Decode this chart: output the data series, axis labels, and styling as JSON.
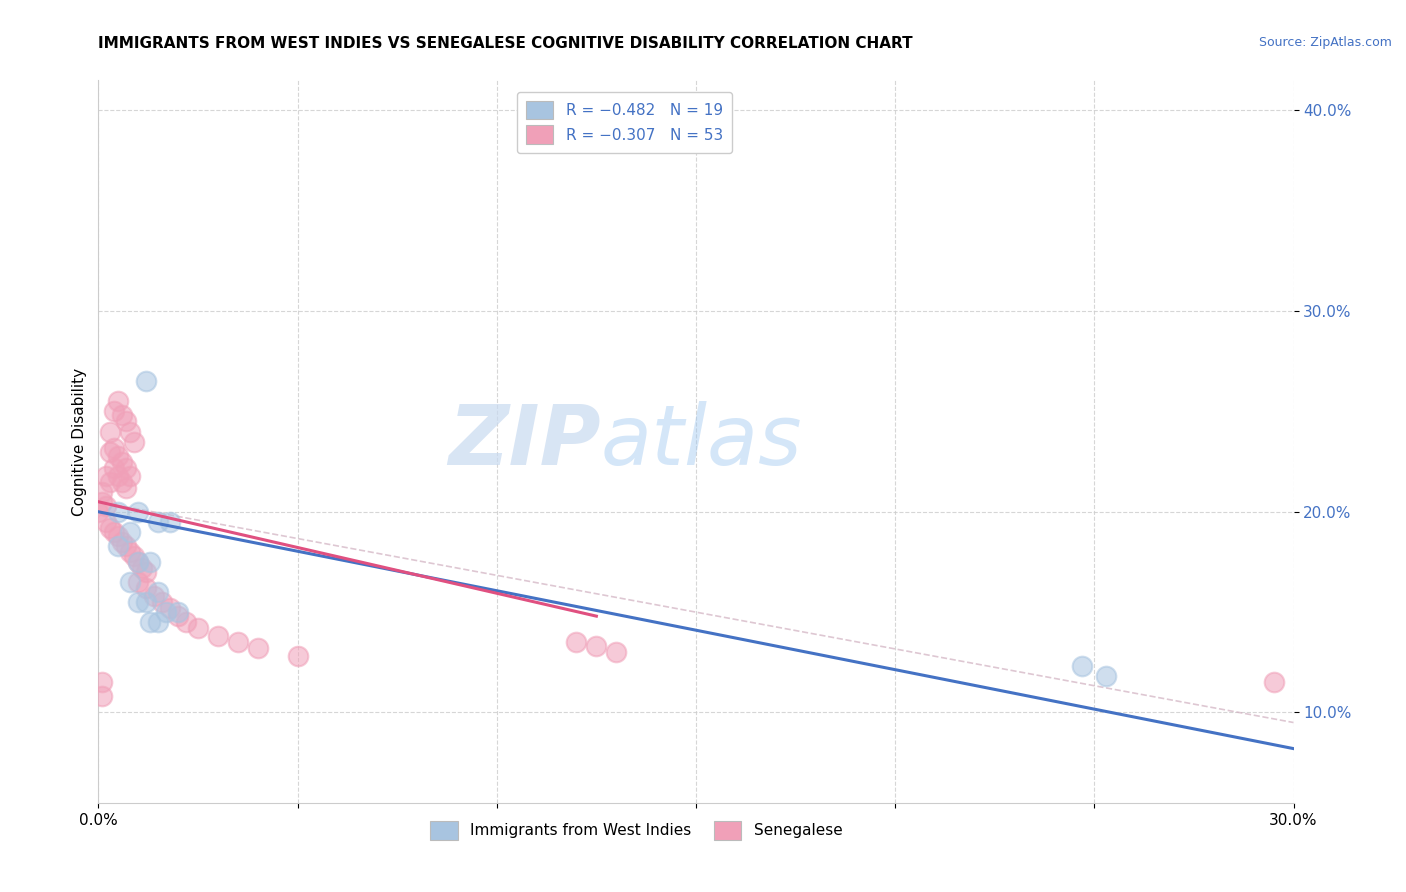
{
  "title": "IMMIGRANTS FROM WEST INDIES VS SENEGALESE COGNITIVE DISABILITY CORRELATION CHART",
  "source": "Source: ZipAtlas.com",
  "ylabel": "Cognitive Disability",
  "xlim": [
    0.0,
    0.3
  ],
  "ylim": [
    0.055,
    0.415
  ],
  "grid_color": "#cccccc",
  "background_color": "#ffffff",
  "watermark_zip": "ZIP",
  "watermark_atlas": "atlas",
  "legend_color": "#4472c4",
  "color_blue": "#a8c4e0",
  "color_pink": "#f0a0b8",
  "line_blue": "#4472c4",
  "line_pink": "#e05080",
  "line_dash_color": "#d0b0c0",
  "scatter_alpha": 0.55,
  "scatter_size": 200,
  "scatter_lw": 1.5,
  "blue_scatter_x": [
    0.005,
    0.01,
    0.012,
    0.008,
    0.015,
    0.018,
    0.005,
    0.01,
    0.013,
    0.008,
    0.015,
    0.012,
    0.01,
    0.013,
    0.015,
    0.017,
    0.02,
    0.247,
    0.253
  ],
  "blue_scatter_y": [
    0.2,
    0.2,
    0.265,
    0.19,
    0.195,
    0.195,
    0.183,
    0.175,
    0.175,
    0.165,
    0.16,
    0.155,
    0.155,
    0.145,
    0.145,
    0.15,
    0.15,
    0.123,
    0.118
  ],
  "pink_scatter_x": [
    0.001,
    0.002,
    0.003,
    0.004,
    0.005,
    0.006,
    0.007,
    0.008,
    0.003,
    0.004,
    0.005,
    0.006,
    0.007,
    0.008,
    0.009,
    0.003,
    0.004,
    0.005,
    0.006,
    0.007,
    0.002,
    0.003,
    0.004,
    0.005,
    0.006,
    0.007,
    0.008,
    0.009,
    0.01,
    0.011,
    0.012,
    0.01,
    0.012,
    0.014,
    0.016,
    0.018,
    0.02,
    0.022,
    0.025,
    0.03,
    0.035,
    0.04,
    0.05,
    0.001,
    0.0,
    0.002,
    0.12,
    0.125,
    0.13,
    0.001,
    0.295,
    0.001
  ],
  "pink_scatter_y": [
    0.21,
    0.218,
    0.215,
    0.222,
    0.218,
    0.215,
    0.212,
    0.218,
    0.24,
    0.25,
    0.255,
    0.248,
    0.245,
    0.24,
    0.235,
    0.23,
    0.232,
    0.228,
    0.225,
    0.222,
    0.195,
    0.192,
    0.19,
    0.188,
    0.185,
    0.183,
    0.18,
    0.178,
    0.175,
    0.172,
    0.17,
    0.165,
    0.162,
    0.158,
    0.155,
    0.152,
    0.148,
    0.145,
    0.142,
    0.138,
    0.135,
    0.132,
    0.128,
    0.205,
    0.2,
    0.203,
    0.135,
    0.133,
    0.13,
    0.115,
    0.115,
    0.108
  ],
  "blue_line_x": [
    0.0,
    0.3
  ],
  "blue_line_y": [
    0.2,
    0.082
  ],
  "pink_line_x": [
    0.0,
    0.125
  ],
  "pink_line_y": [
    0.205,
    0.148
  ],
  "ref_line_x": [
    0.0,
    0.3
  ],
  "ref_line_y": [
    0.205,
    0.095
  ]
}
